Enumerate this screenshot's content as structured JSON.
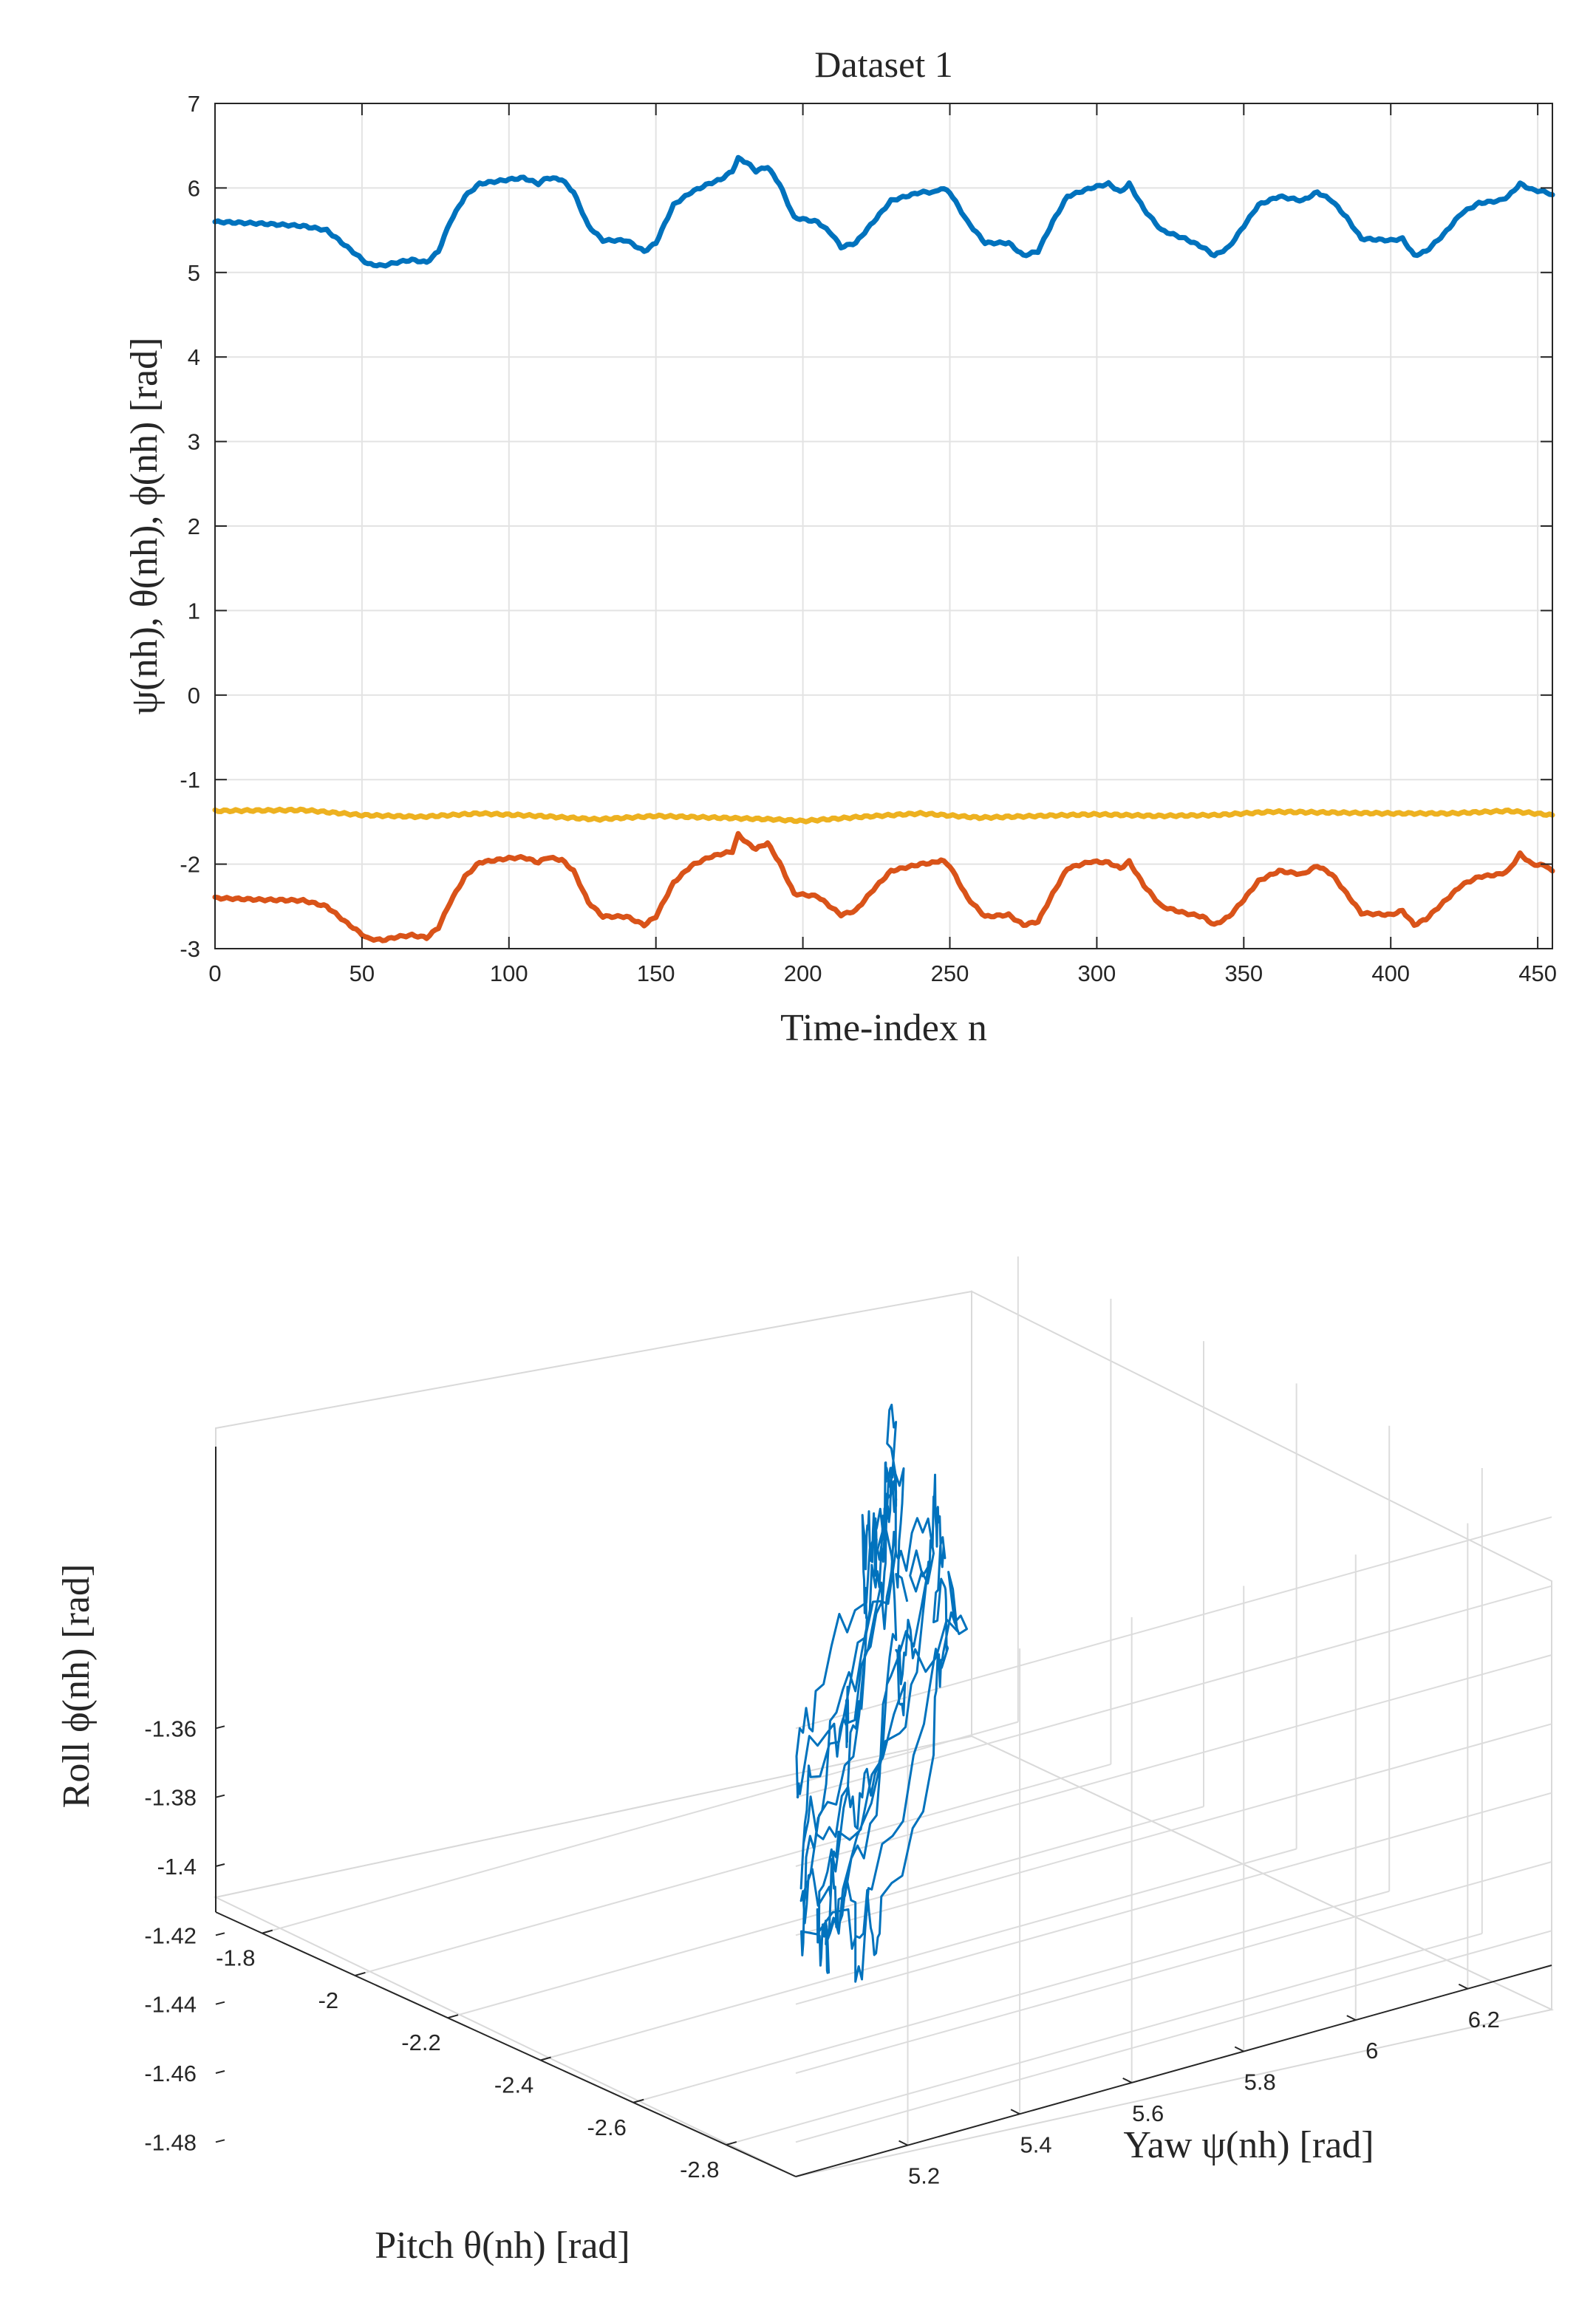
{
  "chart_data": [
    {
      "type": "line",
      "title": "Dataset 1",
      "xlabel": "Time-index n",
      "ylabel": "ψ(nh), θ(nh), ϕ(nh) [rad]",
      "xlim": [
        0,
        455
      ],
      "ylim": [
        -3,
        7
      ],
      "grid": true,
      "xticks": [
        "0",
        "50",
        "100",
        "150",
        "200",
        "250",
        "300",
        "350",
        "400",
        "450"
      ],
      "yticks": [
        "-3",
        "-2",
        "-1",
        "0",
        "1",
        "2",
        "3",
        "4",
        "5",
        "6",
        "7"
      ],
      "series": [
        {
          "name": "yaw ψ(nh)",
          "color": "#0072BD",
          "points": [
            [
              0,
              5.6
            ],
            [
              15,
              5.58
            ],
            [
              30,
              5.55
            ],
            [
              38,
              5.5
            ],
            [
              45,
              5.3
            ],
            [
              52,
              5.1
            ],
            [
              57,
              5.08
            ],
            [
              62,
              5.12
            ],
            [
              67,
              5.15
            ],
            [
              72,
              5.12
            ],
            [
              76,
              5.25
            ],
            [
              80,
              5.6
            ],
            [
              85,
              5.9
            ],
            [
              90,
              6.05
            ],
            [
              100,
              6.1
            ],
            [
              105,
              6.12
            ],
            [
              110,
              6.05
            ],
            [
              113,
              6.12
            ],
            [
              118,
              6.1
            ],
            [
              122,
              5.95
            ],
            [
              127,
              5.55
            ],
            [
              132,
              5.38
            ],
            [
              140,
              5.38
            ],
            [
              146,
              5.25
            ],
            [
              150,
              5.35
            ],
            [
              156,
              5.8
            ],
            [
              162,
              5.95
            ],
            [
              168,
              6.05
            ],
            [
              172,
              6.1
            ],
            [
              176,
              6.2
            ],
            [
              178,
              6.35
            ],
            [
              181,
              6.3
            ],
            [
              184,
              6.2
            ],
            [
              188,
              6.25
            ],
            [
              192,
              6.05
            ],
            [
              197,
              5.65
            ],
            [
              205,
              5.6
            ],
            [
              210,
              5.45
            ],
            [
              213,
              5.3
            ],
            [
              218,
              5.35
            ],
            [
              224,
              5.6
            ],
            [
              230,
              5.85
            ],
            [
              240,
              5.95
            ],
            [
              245,
              5.95
            ],
            [
              247,
              6.0
            ],
            [
              250,
              5.95
            ],
            [
              256,
              5.6
            ],
            [
              262,
              5.35
            ],
            [
              270,
              5.35
            ],
            [
              275,
              5.2
            ],
            [
              280,
              5.25
            ],
            [
              285,
              5.6
            ],
            [
              290,
              5.9
            ],
            [
              298,
              6.0
            ],
            [
              304,
              6.05
            ],
            [
              308,
              5.95
            ],
            [
              311,
              6.05
            ],
            [
              316,
              5.75
            ],
            [
              322,
              5.5
            ],
            [
              330,
              5.4
            ],
            [
              336,
              5.3
            ],
            [
              340,
              5.2
            ],
            [
              345,
              5.3
            ],
            [
              350,
              5.55
            ],
            [
              355,
              5.8
            ],
            [
              362,
              5.9
            ],
            [
              370,
              5.85
            ],
            [
              375,
              5.95
            ],
            [
              380,
              5.85
            ],
            [
              385,
              5.65
            ],
            [
              390,
              5.4
            ],
            [
              400,
              5.38
            ],
            [
              404,
              5.4
            ],
            [
              408,
              5.2
            ],
            [
              412,
              5.25
            ],
            [
              418,
              5.45
            ],
            [
              424,
              5.7
            ],
            [
              430,
              5.82
            ],
            [
              437,
              5.85
            ],
            [
              440,
              5.9
            ],
            [
              444,
              6.05
            ],
            [
              448,
              5.98
            ],
            [
              453,
              5.95
            ],
            [
              455,
              5.92
            ]
          ]
        },
        {
          "name": "pitch θ(nh)",
          "color": "#D95319",
          "points": [
            [
              0,
              -2.4
            ],
            [
              15,
              -2.42
            ],
            [
              30,
              -2.43
            ],
            [
              38,
              -2.5
            ],
            [
              45,
              -2.7
            ],
            [
              52,
              -2.88
            ],
            [
              57,
              -2.9
            ],
            [
              62,
              -2.86
            ],
            [
              67,
              -2.84
            ],
            [
              72,
              -2.87
            ],
            [
              76,
              -2.75
            ],
            [
              80,
              -2.45
            ],
            [
              85,
              -2.15
            ],
            [
              90,
              -1.98
            ],
            [
              100,
              -1.93
            ],
            [
              105,
              -1.92
            ],
            [
              110,
              -1.98
            ],
            [
              113,
              -1.92
            ],
            [
              118,
              -1.95
            ],
            [
              122,
              -2.08
            ],
            [
              127,
              -2.45
            ],
            [
              132,
              -2.62
            ],
            [
              140,
              -2.62
            ],
            [
              146,
              -2.72
            ],
            [
              150,
              -2.62
            ],
            [
              156,
              -2.22
            ],
            [
              162,
              -2.02
            ],
            [
              168,
              -1.92
            ],
            [
              172,
              -1.88
            ],
            [
              176,
              -1.85
            ],
            [
              178,
              -1.65
            ],
            [
              181,
              -1.75
            ],
            [
              184,
              -1.82
            ],
            [
              188,
              -1.75
            ],
            [
              192,
              -1.98
            ],
            [
              197,
              -2.35
            ],
            [
              205,
              -2.38
            ],
            [
              210,
              -2.52
            ],
            [
              213,
              -2.6
            ],
            [
              218,
              -2.55
            ],
            [
              224,
              -2.3
            ],
            [
              230,
              -2.08
            ],
            [
              240,
              -2.0
            ],
            [
              245,
              -1.98
            ],
            [
              247,
              -1.95
            ],
            [
              250,
              -2.02
            ],
            [
              256,
              -2.4
            ],
            [
              262,
              -2.62
            ],
            [
              270,
              -2.6
            ],
            [
              275,
              -2.72
            ],
            [
              280,
              -2.68
            ],
            [
              285,
              -2.35
            ],
            [
              290,
              -2.05
            ],
            [
              298,
              -1.97
            ],
            [
              304,
              -1.98
            ],
            [
              308,
              -2.05
            ],
            [
              311,
              -1.97
            ],
            [
              316,
              -2.25
            ],
            [
              322,
              -2.5
            ],
            [
              330,
              -2.58
            ],
            [
              336,
              -2.62
            ],
            [
              340,
              -2.72
            ],
            [
              345,
              -2.62
            ],
            [
              350,
              -2.42
            ],
            [
              355,
              -2.2
            ],
            [
              362,
              -2.08
            ],
            [
              370,
              -2.12
            ],
            [
              375,
              -2.02
            ],
            [
              380,
              -2.12
            ],
            [
              385,
              -2.35
            ],
            [
              390,
              -2.58
            ],
            [
              400,
              -2.6
            ],
            [
              404,
              -2.55
            ],
            [
              408,
              -2.72
            ],
            [
              412,
              -2.65
            ],
            [
              418,
              -2.45
            ],
            [
              424,
              -2.25
            ],
            [
              430,
              -2.15
            ],
            [
              437,
              -2.12
            ],
            [
              440,
              -2.08
            ],
            [
              444,
              -1.88
            ],
            [
              448,
              -2.0
            ],
            [
              453,
              -2.02
            ],
            [
              455,
              -2.08
            ]
          ]
        },
        {
          "name": "roll ϕ(nh)",
          "color": "#EDB120",
          "points": [
            [
              0,
              -1.37
            ],
            [
              30,
              -1.36
            ],
            [
              50,
              -1.42
            ],
            [
              70,
              -1.44
            ],
            [
              90,
              -1.4
            ],
            [
              110,
              -1.43
            ],
            [
              130,
              -1.47
            ],
            [
              150,
              -1.43
            ],
            [
              170,
              -1.45
            ],
            [
              190,
              -1.47
            ],
            [
              200,
              -1.49
            ],
            [
              220,
              -1.44
            ],
            [
              240,
              -1.4
            ],
            [
              260,
              -1.45
            ],
            [
              280,
              -1.43
            ],
            [
              300,
              -1.41
            ],
            [
              320,
              -1.43
            ],
            [
              340,
              -1.42
            ],
            [
              360,
              -1.38
            ],
            [
              380,
              -1.39
            ],
            [
              400,
              -1.4
            ],
            [
              420,
              -1.4
            ],
            [
              440,
              -1.37
            ],
            [
              455,
              -1.42
            ]
          ]
        }
      ]
    },
    {
      "type": "line3d",
      "xlabel": "Yaw ψ(nh) [rad]",
      "ylabel": "Pitch θ(nh) [rad]",
      "zlabel": "Roll ϕ(nh) [rad]",
      "xlim": [
        5.0,
        6.35
      ],
      "ylim": [
        -2.95,
        -1.7
      ],
      "zlim": [
        -1.49,
        -1.355
      ],
      "xticks": [
        "5.2",
        "5.4",
        "5.6",
        "5.8",
        "6",
        "6.2"
      ],
      "yticks": [
        "-1.8",
        "-2",
        "-2.2",
        "-2.4",
        "-2.6",
        "-2.8"
      ],
      "zticks": [
        "-1.36",
        "-1.38",
        "-1.4",
        "-1.42",
        "-1.44",
        "-1.46",
        "-1.48"
      ],
      "grid": true,
      "color": "#0072BD"
    }
  ]
}
